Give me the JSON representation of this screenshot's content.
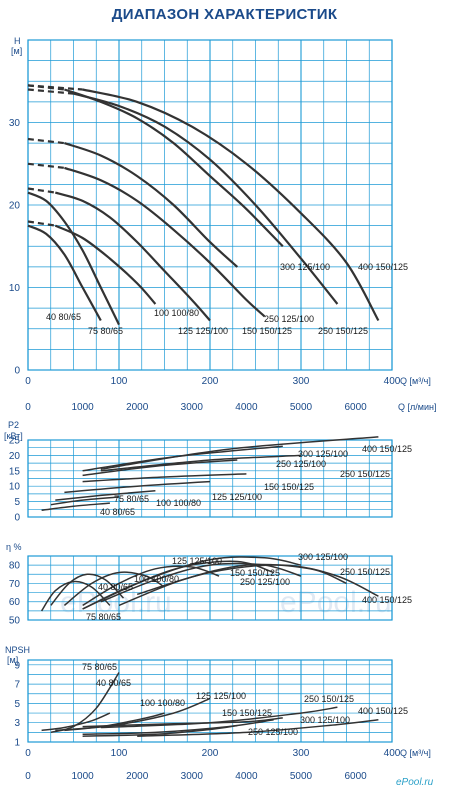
{
  "title": "ДИАПАЗОН ХАРАКТЕРИСТИК",
  "watermark": "ePool.ru",
  "brand": "ePool.ru",
  "colors": {
    "grid": "#1d9ad6",
    "axis_text": "#1a4a8a",
    "curve": "#333333",
    "title": "#1a4a8a"
  },
  "x_axis": {
    "q_m3h_label": "Q [м³/ч]",
    "q_m3h_ticks": [
      0,
      100,
      200,
      300,
      400
    ],
    "q_lmin_label": "Q [л/мин]",
    "q_lmin_ticks": [
      0,
      1000,
      2000,
      3000,
      4000,
      5000,
      6000
    ]
  },
  "chart_data": [
    {
      "type": "line",
      "name": "H",
      "ylabel": "H",
      "yunit": "[м]",
      "ylim": [
        0,
        40
      ],
      "yticks": [
        0,
        10,
        20,
        30
      ],
      "xlim": [
        0,
        400
      ],
      "grid": true,
      "series": [
        {
          "name": "40 80/65",
          "x": [
            0,
            20,
            40,
            60,
            80
          ],
          "y": [
            17.5,
            16.5,
            14,
            10,
            6
          ],
          "dash_until": 0
        },
        {
          "name": "75 80/65",
          "x": [
            0,
            20,
            40,
            60,
            80,
            100
          ],
          "y": [
            21.5,
            20.5,
            18,
            14.5,
            10,
            5.5
          ],
          "dash_until": 0
        },
        {
          "name": "100 100/80",
          "x": [
            0,
            30,
            60,
            90,
            120,
            140
          ],
          "y": [
            18,
            17.5,
            16,
            13.5,
            10.5,
            8
          ],
          "dash_until": 1
        },
        {
          "name": "125 125/100",
          "x": [
            0,
            30,
            60,
            90,
            120,
            150,
            180,
            200
          ],
          "y": [
            22,
            21.5,
            20.5,
            18.5,
            15.5,
            12,
            8.5,
            6
          ],
          "dash_until": 1
        },
        {
          "name": "150 150/125",
          "x": [
            0,
            40,
            80,
            120,
            160,
            200,
            240,
            260
          ],
          "y": [
            25,
            24.5,
            23,
            20.5,
            17,
            13,
            8.5,
            6.5
          ],
          "dash_until": 1
        },
        {
          "name": "250 125/100",
          "x": [
            0,
            40,
            80,
            120,
            160,
            200,
            230
          ],
          "y": [
            28,
            27.5,
            26,
            23.5,
            20,
            15.5,
            12.5
          ],
          "dash_until": 1
        },
        {
          "name": "250 150/125",
          "x": [
            0,
            50,
            100,
            150,
            200,
            250,
            300,
            340
          ],
          "y": [
            34,
            33.5,
            32,
            29.5,
            25.5,
            20,
            13.5,
            8
          ],
          "dash_until": 1
        },
        {
          "name": "300 125/100",
          "x": [
            0,
            40,
            80,
            120,
            160,
            200,
            240,
            280
          ],
          "y": [
            34.5,
            34,
            32.5,
            30.5,
            27.5,
            23.5,
            19.5,
            15
          ],
          "dash_until": 1
        },
        {
          "name": "400 150/125",
          "x": [
            0,
            60,
            120,
            180,
            240,
            300,
            350,
            385
          ],
          "y": [
            34.5,
            34,
            32.5,
            29.5,
            25,
            19,
            13,
            6
          ],
          "dash_until": 1
        }
      ],
      "labels": [
        "40 80/65",
        "75 80/65",
        "100 100/80",
        "125 125/100",
        "150 150/125",
        "250 125/100",
        "250 150/125",
        "300 125/100",
        "400 150/125"
      ]
    },
    {
      "type": "line",
      "name": "P2",
      "ylabel": "P2",
      "yunit": "[кВт]",
      "ylim": [
        0,
        25
      ],
      "yticks": [
        0,
        5,
        10,
        15,
        20,
        25
      ],
      "xlim": [
        0,
        400
      ],
      "grid": true,
      "series": [
        {
          "name": "40 80/65",
          "x": [
            15,
            50,
            90
          ],
          "y": [
            2.2,
            3.5,
            4.5
          ]
        },
        {
          "name": "75 80/65",
          "x": [
            25,
            60,
            100
          ],
          "y": [
            4,
            5.5,
            6.5
          ]
        },
        {
          "name": "100 100/80",
          "x": [
            30,
            80,
            140
          ],
          "y": [
            5.5,
            7,
            8.5
          ]
        },
        {
          "name": "125 125/100",
          "x": [
            40,
            120,
            200
          ],
          "y": [
            8,
            10,
            11.5
          ]
        },
        {
          "name": "150 150/125",
          "x": [
            60,
            150,
            240
          ],
          "y": [
            11.5,
            13,
            14
          ]
        },
        {
          "name": "250 125/100",
          "x": [
            60,
            140,
            230
          ],
          "y": [
            13.5,
            16.5,
            18.5
          ]
        },
        {
          "name": "250 150/125",
          "x": [
            80,
            200,
            300
          ],
          "y": [
            15,
            18.5,
            20
          ]
        },
        {
          "name": "300 125/100",
          "x": [
            60,
            160,
            280
          ],
          "y": [
            15,
            19.5,
            23
          ]
        },
        {
          "name": "400 150/125",
          "x": [
            80,
            220,
            385
          ],
          "y": [
            15.5,
            22,
            26
          ]
        }
      ],
      "labels": [
        "400 150/125",
        "300 125/100",
        "250 125/100",
        "250 150/125",
        "150 150/125",
        "125 125/100",
        "75 80/65",
        "100 100/80",
        "40 80/65"
      ]
    },
    {
      "type": "line",
      "name": "eta",
      "ylabel": "η %",
      "ylim": [
        50,
        85
      ],
      "yticks": [
        50,
        60,
        70,
        80
      ],
      "xlim": [
        0,
        400
      ],
      "grid": true,
      "series": [
        {
          "name": "40 80/65",
          "x": [
            15,
            30,
            50,
            70,
            90
          ],
          "y": [
            55,
            66,
            71,
            68,
            58
          ]
        },
        {
          "name": "75 80/65",
          "x": [
            25,
            45,
            65,
            85,
            105
          ],
          "y": [
            58,
            70,
            75,
            72,
            62
          ]
        },
        {
          "name": "100 100/80",
          "x": [
            40,
            70,
            100,
            130,
            150
          ],
          "y": [
            58,
            70,
            76,
            74,
            68
          ]
        },
        {
          "name": "125 125/100",
          "x": [
            60,
            100,
            140,
            180,
            210
          ],
          "y": [
            58,
            70,
            78,
            79,
            74
          ]
        },
        {
          "name": "150 150/125",
          "x": [
            60,
            110,
            170,
            230,
            270
          ],
          "y": [
            56,
            68,
            79,
            82,
            76
          ]
        },
        {
          "name": "250 125/100",
          "x": [
            80,
            140,
            200,
            260,
            300
          ],
          "y": [
            60,
            72,
            80,
            80,
            74
          ]
        },
        {
          "name": "250 150/125",
          "x": [
            100,
            170,
            240,
            310,
            350
          ],
          "y": [
            58,
            72,
            80,
            78,
            70
          ]
        },
        {
          "name": "300 125/100",
          "x": [
            60,
            130,
            200,
            260,
            300
          ],
          "y": [
            56,
            72,
            83,
            84,
            80
          ]
        },
        {
          "name": "400 150/125",
          "x": [
            120,
            200,
            280,
            340,
            385
          ],
          "y": [
            64,
            76,
            80,
            74,
            63
          ]
        }
      ],
      "labels": [
        "125 125/100",
        "300 125/100",
        "150 150/125",
        "250 150/125",
        "250 125/100",
        "100 100/80",
        "40 80/65",
        "75 80/65",
        "400 150/125"
      ]
    },
    {
      "type": "line",
      "name": "NPSH",
      "ylabel": "NPSH",
      "yunit": "[м]",
      "ylim": [
        1,
        9.5
      ],
      "yticks": [
        1,
        3,
        5,
        7,
        9
      ],
      "xlim": [
        0,
        400
      ],
      "grid": true,
      "series": [
        {
          "name": "40 80/65",
          "x": [
            15,
            40,
            70,
            90
          ],
          "y": [
            2.2,
            2.5,
            3.2,
            4
          ]
        },
        {
          "name": "75 80/65",
          "x": [
            25,
            50,
            75,
            100
          ],
          "y": [
            2,
            2.6,
            4.5,
            8.2
          ]
        },
        {
          "name": "100 100/80",
          "x": [
            30,
            80,
            130,
            150
          ],
          "y": [
            2.2,
            2.6,
            3.5,
            4
          ]
        },
        {
          "name": "125 125/100",
          "x": [
            40,
            100,
            160,
            200
          ],
          "y": [
            2.2,
            2.8,
            4,
            5.5
          ]
        },
        {
          "name": "150 150/125",
          "x": [
            60,
            140,
            220,
            270
          ],
          "y": [
            1.8,
            2,
            2.6,
            3.3
          ]
        },
        {
          "name": "250 125/100",
          "x": [
            60,
            140,
            200,
            230
          ],
          "y": [
            1.6,
            1.8,
            2.3,
            2.7
          ]
        },
        {
          "name": "250 150/125",
          "x": [
            80,
            200,
            300,
            340
          ],
          "y": [
            2.5,
            3,
            4,
            4.6
          ]
        },
        {
          "name": "300 125/100",
          "x": [
            60,
            160,
            240,
            280
          ],
          "y": [
            2.6,
            2.9,
            3.1,
            3.5
          ]
        },
        {
          "name": "400 150/125",
          "x": [
            120,
            240,
            340,
            385
          ],
          "y": [
            1.6,
            2,
            2.8,
            3.3
          ]
        }
      ],
      "labels": [
        "75 80/65",
        "40 80/65",
        "100 100/80",
        "125 125/100",
        "150 150/125",
        "250 150/125",
        "300 125/100",
        "400 150/125",
        "250 125/100"
      ]
    }
  ]
}
